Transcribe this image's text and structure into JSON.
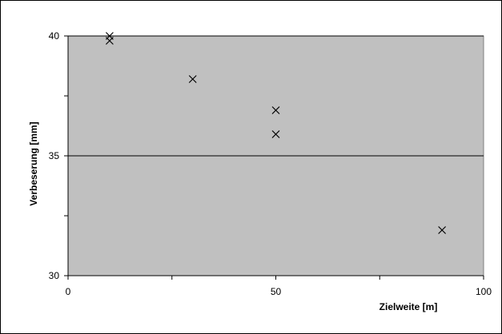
{
  "chart_data": {
    "type": "scatter",
    "title": "",
    "xlabel": "Zielweite [m]",
    "ylabel": "Verbeserung [mm]",
    "xlim": [
      0,
      100
    ],
    "ylim": [
      30,
      40
    ],
    "x_major_ticks": [
      0,
      50,
      100
    ],
    "x_minor_ticks": [
      25,
      75
    ],
    "y_major_ticks": [
      30,
      35,
      40
    ],
    "y_minor_ticks": [
      32.5,
      37.5
    ],
    "x_tick_labels": [
      "0",
      "50",
      "100"
    ],
    "y_tick_labels": [
      "30",
      "35",
      "40"
    ],
    "gridlines": "horizontal at major y ticks",
    "legend": "none",
    "marker": "x",
    "colors": {
      "plot_area": "#c0c0c0",
      "marker": "#000000",
      "gridline": "#000000"
    },
    "series": [
      {
        "points": [
          {
            "x": 10,
            "y": 40.0
          },
          {
            "x": 10,
            "y": 39.8
          },
          {
            "x": 30,
            "y": 38.2
          },
          {
            "x": 50,
            "y": 36.9
          },
          {
            "x": 50,
            "y": 35.9
          },
          {
            "x": 90,
            "y": 31.9
          }
        ]
      }
    ]
  }
}
